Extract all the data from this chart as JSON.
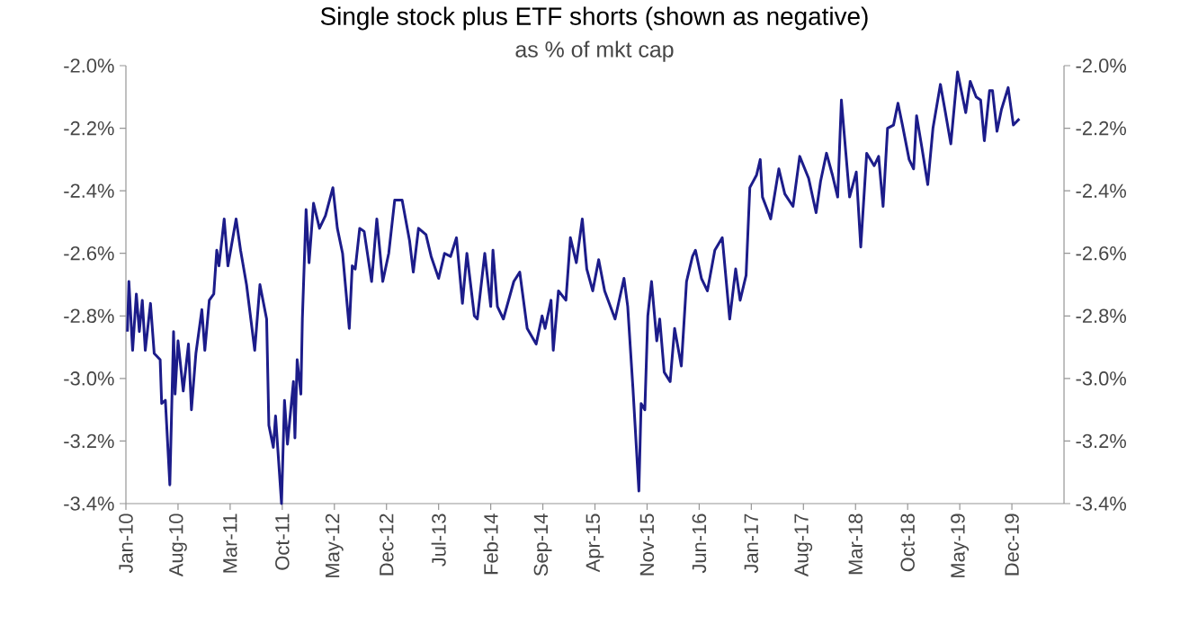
{
  "chart_data": {
    "type": "line",
    "title": "Single stock plus ETF shorts (shown as negative)",
    "subtitle": "as % of mkt cap",
    "x": [
      "2010-01-07",
      "2010-01-13",
      "2010-01-28",
      "2010-02-13",
      "2010-02-25",
      "2010-03-07",
      "2010-03-19",
      "2010-04-10",
      "2010-04-25",
      "2010-05-19",
      "2010-05-25",
      "2010-06-10",
      "2010-06-28",
      "2010-07-13",
      "2010-07-19",
      "2010-08-01",
      "2010-08-22",
      "2010-09-13",
      "2010-09-25",
      "2010-10-13",
      "2010-11-07",
      "2010-11-19",
      "2010-12-07",
      "2010-12-25",
      "2011-01-07",
      "2011-01-16",
      "2011-02-07",
      "2011-02-22",
      "2011-03-25",
      "2011-04-13",
      "2011-05-07",
      "2011-06-10",
      "2011-07-01",
      "2011-07-28",
      "2011-08-07",
      "2011-08-25",
      "2011-09-04",
      "2011-09-28",
      "2011-10-10",
      "2011-10-22",
      "2011-11-16",
      "2011-11-22",
      "2011-12-01",
      "2011-12-16",
      "2011-12-22",
      "2012-01-07",
      "2012-01-19",
      "2012-02-07",
      "2012-03-01",
      "2012-03-25",
      "2012-04-25",
      "2012-05-13",
      "2012-06-04",
      "2012-07-01",
      "2012-07-13",
      "2012-07-25",
      "2012-08-13",
      "2012-09-01",
      "2012-10-01",
      "2012-10-22",
      "2012-11-16",
      "2012-12-10",
      "2013-01-04",
      "2013-02-04",
      "2013-03-04",
      "2013-03-19",
      "2013-04-10",
      "2013-05-10",
      "2013-06-01",
      "2013-07-01",
      "2013-07-25",
      "2013-08-19",
      "2013-09-13",
      "2013-10-07",
      "2013-10-25",
      "2013-11-25",
      "2013-12-07",
      "2014-01-07",
      "2014-02-01",
      "2014-02-10",
      "2014-02-28",
      "2014-03-22",
      "2014-05-04",
      "2014-05-28",
      "2014-06-28",
      "2014-08-04",
      "2014-08-28",
      "2014-09-10",
      "2014-10-04",
      "2014-10-13",
      "2014-11-04",
      "2014-12-04",
      "2014-12-22",
      "2015-01-16",
      "2015-02-10",
      "2015-02-28",
      "2015-03-22",
      "2015-04-16",
      "2015-05-10",
      "2015-06-22",
      "2015-07-28",
      "2015-08-13",
      "2015-09-04",
      "2015-09-28",
      "2015-10-07",
      "2015-10-22",
      "2015-11-04",
      "2015-11-19",
      "2015-12-10",
      "2015-12-22",
      "2016-01-10",
      "2016-02-04",
      "2016-02-22",
      "2016-03-19",
      "2016-04-10",
      "2016-05-04",
      "2016-05-16",
      "2016-06-10",
      "2016-07-04",
      "2016-08-04",
      "2016-09-04",
      "2016-10-04",
      "2016-10-28",
      "2016-11-16",
      "2016-12-10",
      "2016-12-25",
      "2017-01-22",
      "2017-02-07",
      "2017-02-16",
      "2017-03-10",
      "2017-03-19",
      "2017-04-22",
      "2017-05-16",
      "2017-06-19",
      "2017-07-16",
      "2017-08-22",
      "2017-09-22",
      "2017-10-10",
      "2017-11-04",
      "2017-11-28",
      "2017-12-19",
      "2018-01-04",
      "2018-01-22",
      "2018-02-07",
      "2018-03-04",
      "2018-03-22",
      "2018-04-16",
      "2018-05-16",
      "2018-06-04",
      "2018-06-22",
      "2018-07-10",
      "2018-08-04",
      "2018-08-22",
      "2018-09-10",
      "2018-10-07",
      "2018-10-25",
      "2018-11-07",
      "2018-11-28",
      "2018-12-22",
      "2019-01-13",
      "2019-02-13",
      "2019-03-01",
      "2019-03-25",
      "2019-04-22",
      "2019-05-25",
      "2019-06-13",
      "2019-07-07",
      "2019-07-25",
      "2019-08-10",
      "2019-09-01",
      "2019-09-13",
      "2019-10-01",
      "2019-10-19",
      "2019-11-16",
      "2019-12-07",
      "2020-01-01"
    ],
    "series": [
      {
        "color": "#1c1c8a",
        "values": [
          -2.85,
          -2.69,
          -2.91,
          -2.73,
          -2.85,
          -2.75,
          -2.91,
          -2.76,
          -2.92,
          -2.94,
          -3.08,
          -3.07,
          -3.34,
          -2.85,
          -3.05,
          -2.88,
          -3.04,
          -2.89,
          -3.1,
          -2.92,
          -2.78,
          -2.91,
          -2.75,
          -2.73,
          -2.59,
          -2.64,
          -2.49,
          -2.64,
          -2.49,
          -2.59,
          -2.7,
          -2.91,
          -2.7,
          -2.81,
          -3.15,
          -3.22,
          -3.12,
          -3.4,
          -3.07,
          -3.21,
          -3.01,
          -3.19,
          -2.94,
          -3.05,
          -2.81,
          -2.46,
          -2.63,
          -2.44,
          -2.52,
          -2.48,
          -2.39,
          -2.52,
          -2.6,
          -2.84,
          -2.64,
          -2.65,
          -2.52,
          -2.53,
          -2.69,
          -2.49,
          -2.69,
          -2.6,
          -2.43,
          -2.43,
          -2.56,
          -2.66,
          -2.52,
          -2.54,
          -2.61,
          -2.68,
          -2.6,
          -2.61,
          -2.55,
          -2.76,
          -2.6,
          -2.8,
          -2.81,
          -2.6,
          -2.77,
          -2.59,
          -2.77,
          -2.81,
          -2.69,
          -2.66,
          -2.84,
          -2.89,
          -2.8,
          -2.84,
          -2.75,
          -2.91,
          -2.72,
          -2.75,
          -2.55,
          -2.63,
          -2.49,
          -2.65,
          -2.72,
          -2.62,
          -2.72,
          -2.81,
          -2.68,
          -2.77,
          -3.03,
          -3.36,
          -3.08,
          -3.1,
          -2.8,
          -2.69,
          -2.88,
          -2.81,
          -2.98,
          -3.01,
          -2.84,
          -2.96,
          -2.69,
          -2.61,
          -2.59,
          -2.68,
          -2.72,
          -2.59,
          -2.55,
          -2.81,
          -2.65,
          -2.75,
          -2.67,
          -2.39,
          -2.35,
          -2.3,
          -2.42,
          -2.47,
          -2.49,
          -2.33,
          -2.41,
          -2.45,
          -2.29,
          -2.36,
          -2.47,
          -2.37,
          -2.28,
          -2.35,
          -2.42,
          -2.11,
          -2.28,
          -2.42,
          -2.34,
          -2.58,
          -2.28,
          -2.32,
          -2.29,
          -2.45,
          -2.2,
          -2.19,
          -2.12,
          -2.19,
          -2.3,
          -2.33,
          -2.16,
          -2.26,
          -2.38,
          -2.2,
          -2.06,
          -2.14,
          -2.25,
          -2.02,
          -2.15,
          -2.05,
          -2.1,
          -2.11,
          -2.24,
          -2.08,
          -2.08,
          -2.21,
          -2.14,
          -2.07,
          -2.19,
          -2.17
        ]
      }
    ],
    "xlim": [
      "2010-01",
      "2020-07"
    ],
    "xticks": [
      {
        "value": "2010-01",
        "label": "Jan-10"
      },
      {
        "value": "2010-08",
        "label": "Aug-10"
      },
      {
        "value": "2011-03",
        "label": "Mar-11"
      },
      {
        "value": "2011-10",
        "label": "Oct-11"
      },
      {
        "value": "2012-05",
        "label": "May-12"
      },
      {
        "value": "2012-12",
        "label": "Dec-12"
      },
      {
        "value": "2013-07",
        "label": "Jul-13"
      },
      {
        "value": "2014-02",
        "label": "Feb-14"
      },
      {
        "value": "2014-09",
        "label": "Sep-14"
      },
      {
        "value": "2015-04",
        "label": "Apr-15"
      },
      {
        "value": "2015-11",
        "label": "Nov-15"
      },
      {
        "value": "2016-06",
        "label": "Jun-16"
      },
      {
        "value": "2017-01",
        "label": "Jan-17"
      },
      {
        "value": "2017-08",
        "label": "Aug-17"
      },
      {
        "value": "2018-03",
        "label": "Mar-18"
      },
      {
        "value": "2018-10",
        "label": "Oct-18"
      },
      {
        "value": "2019-05",
        "label": "May-19"
      },
      {
        "value": "2019-12",
        "label": "Dec-19"
      }
    ],
    "ylim": [
      -3.4,
      -2.0
    ],
    "yticks": [
      {
        "value": -3.4,
        "label": "-3.4%"
      },
      {
        "value": -3.2,
        "label": "-3.2%"
      },
      {
        "value": -3.0,
        "label": "-3.0%"
      },
      {
        "value": -2.8,
        "label": "-2.8%"
      },
      {
        "value": -2.6,
        "label": "-2.6%"
      },
      {
        "value": -2.4,
        "label": "-2.4%"
      },
      {
        "value": -2.2,
        "label": "-2.2%"
      },
      {
        "value": -2.0,
        "label": "-2.0%"
      }
    ],
    "y2lim": [
      -3.4,
      -2.0
    ],
    "y2ticks": [
      {
        "value": -3.4,
        "label": "-3.4%"
      },
      {
        "value": -3.2,
        "label": "-3.2%"
      },
      {
        "value": -3.0,
        "label": "-3.0%"
      },
      {
        "value": -2.8,
        "label": "-2.8%"
      },
      {
        "value": -2.6,
        "label": "-2.6%"
      },
      {
        "value": -2.4,
        "label": "-2.4%"
      },
      {
        "value": -2.2,
        "label": "-2.2%"
      },
      {
        "value": -2.0,
        "label": "-2.0%"
      }
    ],
    "grid": false,
    "legend": false,
    "marker": "none",
    "line_style": "solid"
  }
}
